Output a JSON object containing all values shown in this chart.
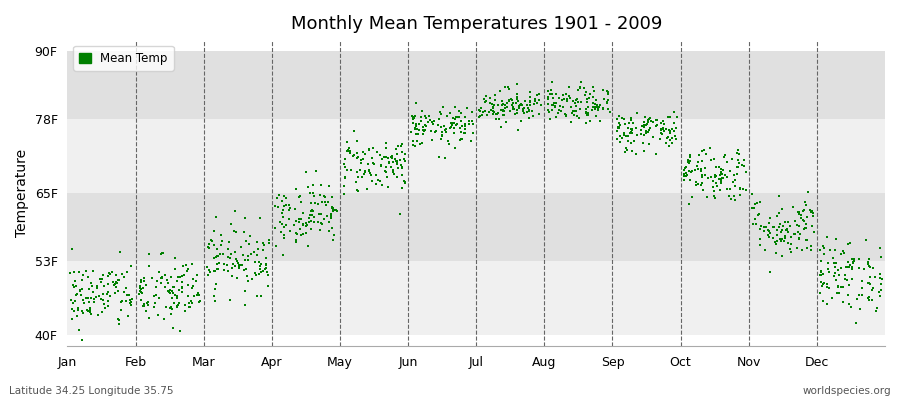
{
  "title": "Monthly Mean Temperatures 1901 - 2009",
  "ylabel": "Temperature",
  "xlabel_labels": [
    "Jan",
    "Feb",
    "Mar",
    "Apr",
    "May",
    "Jun",
    "Jul",
    "Aug",
    "Sep",
    "Oct",
    "Nov",
    "Dec"
  ],
  "bottom_left_text": "Latitude 34.25 Longitude 35.75",
  "bottom_right_text": "worldspecies.org",
  "legend_label": "Mean Temp",
  "dot_color": "#008000",
  "bg_color": "#ffffff",
  "plot_bg_color_light": "#f0f0f0",
  "plot_bg_color_dark": "#e0e0e0",
  "ytick_labels": [
    "40F",
    "53F",
    "65F",
    "78F",
    "90F"
  ],
  "ytick_values": [
    40,
    53,
    65,
    78,
    90
  ],
  "ylim": [
    38,
    92
  ],
  "xlim": [
    0,
    12
  ],
  "num_years": 109,
  "monthly_mean_temps_F": [
    47.0,
    47.5,
    53.5,
    61.5,
    70.0,
    76.5,
    80.5,
    80.5,
    76.0,
    68.5,
    59.0,
    50.5
  ],
  "monthly_std_temps_F": [
    3.0,
    3.2,
    3.0,
    2.8,
    2.5,
    1.8,
    1.5,
    1.6,
    1.8,
    2.5,
    2.8,
    3.2
  ],
  "seed": 42
}
